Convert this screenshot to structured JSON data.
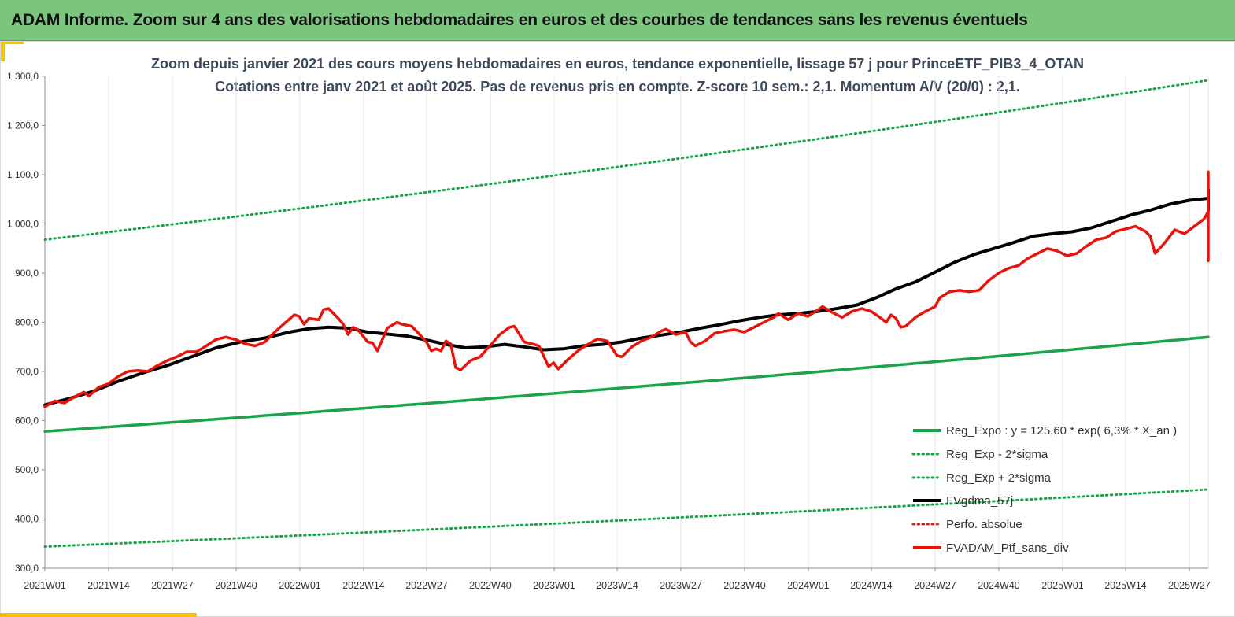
{
  "header": {
    "title": "ADAM Informe. Zoom sur 4 ans des valorisations hebdomadaires en euros et des courbes de tendances sans les revenus éventuels"
  },
  "chart_data": {
    "type": "line",
    "title": "Zoom depuis janvier 2021 des cours moyens hebdomadaires  en euros, tendance exponentielle, lissage 57 j pour PrinceETF_PIB3_4_OTAN",
    "subtitle": "Cotations entre janv 2021 et août 2025. Pas de revenus pris en compte. Z-score 10 sem.: 2,1. Momentum A/V (20/0) : 2,1.",
    "x_tick_labels": [
      "2021W01",
      "2021W14",
      "2021W27",
      "2021W40",
      "2022W01",
      "2022W14",
      "2022W27",
      "2022W40",
      "2023W01",
      "2023W14",
      "2023W27",
      "2023W40",
      "2024W01",
      "2024W14",
      "2024W27",
      "2024W40",
      "2025W01",
      "2025W14",
      "2025W27"
    ],
    "y_tick_labels": [
      "300,0",
      "400,0",
      "500,0",
      "600,0",
      "700,0",
      "800,0",
      "900,0",
      "1 000,0",
      "1 100,0",
      "1 200,0",
      "1 300,0"
    ],
    "ylim": [
      300,
      1300
    ],
    "x_range_weeks": [
      0,
      241
    ],
    "grid": "vertical",
    "legend_position": "bottom-right",
    "series": [
      {
        "name": "Reg_Expo : y = 125,60 * exp( 6,3% *  X_an )",
        "color": "#1aa44a",
        "style": "solid",
        "kind": "exp",
        "start_value": 578,
        "end_value": 770
      },
      {
        "name": "Reg_Exp - 2*sigma",
        "color": "#1aa44a",
        "style": "dotted",
        "kind": "exp",
        "start_value": 344,
        "end_value": 460
      },
      {
        "name": "Reg_Exp + 2*sigma",
        "color": "#1aa44a",
        "style": "dotted",
        "kind": "exp",
        "start_value": 968,
        "end_value": 1292
      },
      {
        "name": "FVgdma_57j",
        "color": "#000000",
        "style": "solid",
        "kind": "points",
        "points": [
          [
            0,
            632
          ],
          [
            5,
            645
          ],
          [
            10,
            660
          ],
          [
            15,
            680
          ],
          [
            20,
            697
          ],
          [
            25,
            712
          ],
          [
            30,
            730
          ],
          [
            35,
            748
          ],
          [
            40,
            760
          ],
          [
            45,
            768
          ],
          [
            50,
            780
          ],
          [
            54,
            787
          ],
          [
            58,
            790
          ],
          [
            62,
            788
          ],
          [
            66,
            780
          ],
          [
            70,
            776
          ],
          [
            74,
            772
          ],
          [
            78,
            764
          ],
          [
            82,
            755
          ],
          [
            86,
            748
          ],
          [
            90,
            750
          ],
          [
            94,
            755
          ],
          [
            98,
            750
          ],
          [
            102,
            744
          ],
          [
            106,
            746
          ],
          [
            110,
            752
          ],
          [
            114,
            755
          ],
          [
            118,
            760
          ],
          [
            122,
            768
          ],
          [
            126,
            774
          ],
          [
            130,
            780
          ],
          [
            134,
            788
          ],
          [
            138,
            795
          ],
          [
            142,
            803
          ],
          [
            146,
            810
          ],
          [
            150,
            815
          ],
          [
            154,
            818
          ],
          [
            158,
            822
          ],
          [
            162,
            828
          ],
          [
            166,
            835
          ],
          [
            170,
            850
          ],
          [
            174,
            868
          ],
          [
            178,
            882
          ],
          [
            182,
            902
          ],
          [
            186,
            922
          ],
          [
            190,
            938
          ],
          [
            194,
            950
          ],
          [
            198,
            962
          ],
          [
            202,
            975
          ],
          [
            206,
            980
          ],
          [
            210,
            984
          ],
          [
            214,
            992
          ],
          [
            218,
            1005
          ],
          [
            222,
            1018
          ],
          [
            226,
            1028
          ],
          [
            230,
            1040
          ],
          [
            234,
            1048
          ],
          [
            238,
            1052
          ],
          [
            242,
            1054
          ],
          [
            246,
            1046
          ],
          [
            248,
            1030
          ],
          [
            250,
            1028
          ],
          [
            254,
            1040
          ],
          [
            258,
            1046
          ],
          [
            262,
            1054
          ],
          [
            266,
            1062
          ],
          [
            268,
            1070
          ]
        ]
      },
      {
        "name": "Perfo. absolue",
        "color": "#e02020",
        "style": "dotted",
        "kind": "none"
      },
      {
        "name": "FVADAM_Ptf_sans_div",
        "color": "#e8140c",
        "style": "solid",
        "kind": "points",
        "points": [
          [
            0,
            628
          ],
          [
            2,
            640
          ],
          [
            4,
            636
          ],
          [
            6,
            648
          ],
          [
            8,
            658
          ],
          [
            9,
            650
          ],
          [
            11,
            668
          ],
          [
            13,
            675
          ],
          [
            15,
            690
          ],
          [
            17,
            700
          ],
          [
            19,
            702
          ],
          [
            21,
            700
          ],
          [
            23,
            712
          ],
          [
            25,
            722
          ],
          [
            27,
            730
          ],
          [
            29,
            740
          ],
          [
            31,
            740
          ],
          [
            33,
            752
          ],
          [
            35,
            765
          ],
          [
            37,
            770
          ],
          [
            39,
            765
          ],
          [
            41,
            756
          ],
          [
            43,
            752
          ],
          [
            45,
            760
          ],
          [
            47,
            780
          ],
          [
            49,
            798
          ],
          [
            51,
            815
          ],
          [
            52,
            812
          ],
          [
            53,
            796
          ],
          [
            54,
            808
          ],
          [
            56,
            805
          ],
          [
            57,
            826
          ],
          [
            58,
            828
          ],
          [
            60,
            808
          ],
          [
            61,
            796
          ],
          [
            62,
            775
          ],
          [
            63,
            790
          ],
          [
            64,
            785
          ],
          [
            66,
            760
          ],
          [
            67,
            758
          ],
          [
            68,
            742
          ],
          [
            70,
            788
          ],
          [
            72,
            800
          ],
          [
            73,
            796
          ],
          [
            75,
            792
          ],
          [
            76,
            782
          ],
          [
            78,
            760
          ],
          [
            79,
            742
          ],
          [
            80,
            746
          ],
          [
            81,
            742
          ],
          [
            82,
            762
          ],
          [
            83,
            756
          ],
          [
            84,
            708
          ],
          [
            85,
            703
          ],
          [
            87,
            722
          ],
          [
            89,
            730
          ],
          [
            91,
            752
          ],
          [
            93,
            775
          ],
          [
            95,
            790
          ],
          [
            96,
            792
          ],
          [
            98,
            760
          ],
          [
            100,
            755
          ],
          [
            101,
            752
          ],
          [
            103,
            710
          ],
          [
            104,
            718
          ],
          [
            105,
            705
          ],
          [
            107,
            725
          ],
          [
            109,
            742
          ],
          [
            111,
            755
          ],
          [
            113,
            766
          ],
          [
            115,
            762
          ],
          [
            117,
            732
          ],
          [
            118,
            730
          ],
          [
            120,
            750
          ],
          [
            122,
            762
          ],
          [
            124,
            770
          ],
          [
            126,
            782
          ],
          [
            127,
            786
          ],
          [
            129,
            775
          ],
          [
            131,
            780
          ],
          [
            132,
            760
          ],
          [
            133,
            752
          ],
          [
            135,
            762
          ],
          [
            137,
            778
          ],
          [
            139,
            782
          ],
          [
            141,
            785
          ],
          [
            143,
            780
          ],
          [
            145,
            790
          ],
          [
            147,
            800
          ],
          [
            149,
            810
          ],
          [
            150,
            818
          ],
          [
            152,
            805
          ],
          [
            154,
            818
          ],
          [
            156,
            812
          ],
          [
            158,
            825
          ],
          [
            159,
            832
          ],
          [
            161,
            820
          ],
          [
            163,
            810
          ],
          [
            165,
            822
          ],
          [
            167,
            828
          ],
          [
            169,
            822
          ],
          [
            171,
            808
          ],
          [
            172,
            800
          ],
          [
            173,
            815
          ],
          [
            174,
            808
          ],
          [
            175,
            790
          ],
          [
            176,
            792
          ],
          [
            178,
            810
          ],
          [
            180,
            822
          ],
          [
            182,
            832
          ],
          [
            183,
            850
          ],
          [
            185,
            862
          ],
          [
            187,
            865
          ],
          [
            189,
            862
          ],
          [
            191,
            865
          ],
          [
            193,
            885
          ],
          [
            195,
            900
          ],
          [
            197,
            910
          ],
          [
            199,
            915
          ],
          [
            201,
            930
          ],
          [
            203,
            940
          ],
          [
            205,
            950
          ],
          [
            207,
            945
          ],
          [
            209,
            935
          ],
          [
            211,
            940
          ],
          [
            213,
            955
          ],
          [
            215,
            968
          ],
          [
            217,
            972
          ],
          [
            219,
            985
          ],
          [
            221,
            990
          ],
          [
            223,
            995
          ],
          [
            225,
            985
          ],
          [
            226,
            975
          ],
          [
            227,
            940
          ],
          [
            229,
            962
          ],
          [
            231,
            988
          ],
          [
            233,
            980
          ],
          [
            235,
            995
          ],
          [
            237,
            1010
          ],
          [
            239,
            1025
          ],
          [
            241,
            1020
          ],
          [
            243,
            1025
          ],
          [
            245,
            1035
          ],
          [
            247,
            1045
          ],
          [
            249,
            1060
          ],
          [
            251,
            1050
          ],
          [
            253,
            1045
          ],
          [
            255,
            1060
          ],
          [
            257,
            1075
          ],
          [
            259,
            1082
          ],
          [
            260,
            1088
          ],
          [
            261,
            1100
          ],
          [
            262,
            1106
          ],
          [
            263,
            1095
          ],
          [
            264,
            1080
          ],
          [
            265,
            1032
          ],
          [
            266,
            1040
          ],
          [
            267,
            1050
          ],
          [
            268,
            1045
          ],
          [
            269,
            990
          ],
          [
            270,
            925
          ],
          [
            271,
            945
          ],
          [
            272,
            965
          ],
          [
            273,
            975
          ],
          [
            274,
            1000
          ],
          [
            275,
            1020
          ],
          [
            276,
            1050
          ],
          [
            278,
            1052
          ],
          [
            280,
            1055
          ],
          [
            281,
            1045
          ],
          [
            282,
            1045
          ],
          [
            284,
            1060
          ],
          [
            286,
            1068
          ],
          [
            288,
            1075
          ],
          [
            290,
            1088
          ]
        ]
      }
    ]
  }
}
